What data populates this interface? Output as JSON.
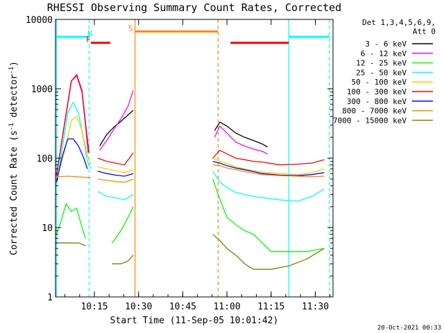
{
  "chart_data": {
    "type": "line",
    "title": "RHESSI Observing Summary Count Rates, Corrected",
    "xlabel": "Start Time (11-Sep-05 10:01:42)",
    "ylabel": "Corrected Count Rate (s",
    "ylabel_sup1": "-1",
    "ylabel_mid": " detector",
    "ylabel_sup2": "-1",
    "ylabel_end": ")",
    "footer": "20-Oct-2021 00:33",
    "xlim": [
      10.03,
      11.6
    ],
    "ylim": [
      1,
      10000
    ],
    "y_scale": "log",
    "x_ticks": [
      {
        "v": 10.25,
        "label": "10:15"
      },
      {
        "v": 10.5,
        "label": "10:30"
      },
      {
        "v": 10.75,
        "label": "10:45"
      },
      {
        "v": 11.0,
        "label": "11:00"
      },
      {
        "v": 11.25,
        "label": "11:15"
      },
      {
        "v": 11.5,
        "label": "11:30"
      }
    ],
    "y_ticks": [
      {
        "v": 1,
        "label": "1"
      },
      {
        "v": 10,
        "label": "10"
      },
      {
        "v": 100,
        "label": "100"
      },
      {
        "v": 1000,
        "label": "1000"
      },
      {
        "v": 10000,
        "label": "10000"
      }
    ],
    "legend_title": [
      "Det 1,3,4,5,6,9,",
      "Att 0"
    ],
    "series": [
      {
        "name": "3 - 6 keV",
        "color": "#000000",
        "segments": [
          [
            [
              10.035,
              55
            ],
            [
              10.08,
              300
            ],
            [
              10.12,
              1300
            ],
            [
              10.15,
              1550
            ],
            [
              10.18,
              900
            ],
            [
              10.2,
              300
            ],
            [
              10.215,
              120
            ]
          ],
          [
            [
              10.28,
              150
            ],
            [
              10.32,
              220
            ],
            [
              10.36,
              280
            ],
            [
              10.4,
              340
            ],
            [
              10.44,
              420
            ],
            [
              10.47,
              490
            ]
          ],
          [
            [
              10.93,
              250
            ],
            [
              10.96,
              330
            ],
            [
              11.0,
              290
            ],
            [
              11.05,
              230
            ],
            [
              11.1,
              200
            ],
            [
              11.15,
              180
            ],
            [
              11.2,
              160
            ],
            [
              11.23,
              145
            ]
          ]
        ]
      },
      {
        "name": "6 - 12 keV",
        "color": "#ff00ff",
        "segments": [
          [
            [
              10.035,
              55
            ],
            [
              10.08,
              300
            ],
            [
              10.12,
              1300
            ],
            [
              10.15,
              1550
            ],
            [
              10.18,
              900
            ],
            [
              10.2,
              300
            ],
            [
              10.215,
              120
            ]
          ],
          [
            [
              10.28,
              130
            ],
            [
              10.32,
              180
            ],
            [
              10.36,
              260
            ],
            [
              10.4,
              370
            ],
            [
              10.44,
              560
            ],
            [
              10.47,
              950
            ]
          ],
          [
            [
              10.93,
              200
            ],
            [
              10.96,
              290
            ],
            [
              11.0,
              230
            ],
            [
              11.05,
              170
            ],
            [
              11.1,
              150
            ],
            [
              11.15,
              135
            ],
            [
              11.2,
              125
            ],
            [
              11.23,
              115
            ]
          ]
        ]
      },
      {
        "name": "12 - 25 keV",
        "color": "#00ff00",
        "segments": [
          [
            [
              10.035,
              8
            ],
            [
              10.06,
              12
            ],
            [
              10.09,
              22
            ],
            [
              10.12,
              17
            ],
            [
              10.15,
              19
            ],
            [
              10.18,
              10
            ],
            [
              10.2,
              7
            ]
          ],
          [
            [
              10.35,
              6
            ],
            [
              10.4,
              9
            ],
            [
              10.44,
              14
            ],
            [
              10.47,
              20
            ]
          ],
          [
            [
              10.92,
              50
            ],
            [
              10.95,
              30
            ],
            [
              11.0,
              14
            ],
            [
              11.05,
              11
            ],
            [
              11.1,
              9
            ],
            [
              11.15,
              8
            ],
            [
              11.2,
              6
            ],
            [
              11.25,
              4.5
            ],
            [
              11.35,
              4.5
            ],
            [
              11.45,
              4.5
            ],
            [
              11.55,
              5
            ]
          ]
        ]
      },
      {
        "name": "25 - 50 keV",
        "color": "#00ffff",
        "segments": [
          [
            [
              10.035,
              40
            ],
            [
              10.07,
              150
            ],
            [
              10.1,
              450
            ],
            [
              10.13,
              640
            ],
            [
              10.16,
              450
            ],
            [
              10.19,
              180
            ],
            [
              10.21,
              90
            ],
            [
              10.23,
              70
            ]
          ],
          [
            [
              10.27,
              33
            ],
            [
              10.32,
              28
            ],
            [
              10.37,
              27
            ],
            [
              10.42,
              25
            ],
            [
              10.47,
              30
            ]
          ],
          [
            [
              10.92,
              65
            ],
            [
              10.96,
              45
            ],
            [
              11.0,
              38
            ],
            [
              11.05,
              32
            ],
            [
              11.1,
              30
            ],
            [
              11.15,
              28
            ],
            [
              11.2,
              27
            ],
            [
              11.3,
              25
            ],
            [
              11.4,
              24
            ],
            [
              11.48,
              28
            ],
            [
              11.55,
              36
            ]
          ]
        ]
      },
      {
        "name": "50 - 100 keV",
        "color": "#ffcc00",
        "segments": [
          [
            [
              10.035,
              50
            ],
            [
              10.08,
              120
            ],
            [
              10.12,
              350
            ],
            [
              10.15,
              400
            ],
            [
              10.18,
              250
            ],
            [
              10.21,
              110
            ],
            [
              10.23,
              80
            ]
          ],
          [
            [
              10.27,
              75
            ],
            [
              10.32,
              70
            ],
            [
              10.37,
              66
            ],
            [
              10.42,
              62
            ],
            [
              10.47,
              68
            ]
          ],
          [
            [
              10.92,
              100
            ],
            [
              10.96,
              90
            ],
            [
              11.0,
              85
            ],
            [
              11.05,
              75
            ],
            [
              11.1,
              70
            ],
            [
              11.15,
              66
            ],
            [
              11.2,
              63
            ],
            [
              11.3,
              60
            ],
            [
              11.4,
              58
            ],
            [
              11.48,
              62
            ],
            [
              11.55,
              70
            ]
          ]
        ]
      },
      {
        "name": "100 - 300 keV",
        "color": "#ff0000",
        "segments": [
          [
            [
              10.035,
              55
            ],
            [
              10.08,
              300
            ],
            [
              10.12,
              1300
            ],
            [
              10.15,
              1600
            ],
            [
              10.18,
              950
            ],
            [
              10.2,
              320
            ],
            [
              10.22,
              120
            ]
          ],
          [
            [
              10.27,
              100
            ],
            [
              10.32,
              90
            ],
            [
              10.37,
              85
            ],
            [
              10.42,
              80
            ],
            [
              10.47,
              120
            ]
          ],
          [
            [
              10.92,
              100
            ],
            [
              10.96,
              130
            ],
            [
              11.0,
              115
            ],
            [
              11.05,
              100
            ],
            [
              11.1,
              95
            ],
            [
              11.15,
              90
            ],
            [
              11.2,
              88
            ],
            [
              11.3,
              80
            ],
            [
              11.4,
              82
            ],
            [
              11.48,
              85
            ],
            [
              11.55,
              95
            ]
          ]
        ]
      },
      {
        "name": "300 - 800 keV",
        "color": "#0000ff",
        "segments": [
          [
            [
              10.035,
              45
            ],
            [
              10.07,
              110
            ],
            [
              10.1,
              190
            ],
            [
              10.13,
              190
            ],
            [
              10.16,
              150
            ],
            [
              10.19,
              100
            ],
            [
              10.21,
              70
            ]
          ],
          [
            [
              10.27,
              65
            ],
            [
              10.32,
              60
            ],
            [
              10.37,
              57
            ],
            [
              10.42,
              55
            ],
            [
              10.47,
              60
            ]
          ],
          [
            [
              10.92,
              90
            ],
            [
              10.96,
              85
            ],
            [
              11.0,
              78
            ],
            [
              11.05,
              72
            ],
            [
              11.1,
              68
            ],
            [
              11.15,
              64
            ],
            [
              11.2,
              60
            ],
            [
              11.3,
              57
            ],
            [
              11.4,
              56
            ],
            [
              11.48,
              58
            ],
            [
              11.55,
              62
            ]
          ]
        ]
      },
      {
        "name": "800 - 7000 keV",
        "color": "#ff8800",
        "segments": [
          [
            [
              10.035,
              54
            ],
            [
              10.1,
              55
            ],
            [
              10.15,
              54
            ],
            [
              10.2,
              53
            ],
            [
              10.23,
              52
            ]
          ],
          [
            [
              10.27,
              50
            ],
            [
              10.32,
              48
            ],
            [
              10.37,
              46
            ],
            [
              10.42,
              45
            ],
            [
              10.47,
              50
            ]
          ],
          [
            [
              10.92,
              80
            ],
            [
              10.96,
              78
            ],
            [
              11.0,
              72
            ],
            [
              11.05,
              68
            ],
            [
              11.1,
              64
            ],
            [
              11.15,
              61
            ],
            [
              11.2,
              58
            ],
            [
              11.3,
              56
            ],
            [
              11.4,
              55
            ],
            [
              11.48,
              54
            ],
            [
              11.55,
              55
            ]
          ]
        ]
      },
      {
        "name": "7000 - 15000 keV",
        "color": "#808000",
        "segments": [
          [
            [
              10.035,
              6
            ],
            [
              10.08,
              6
            ],
            [
              10.12,
              6
            ],
            [
              10.16,
              6
            ],
            [
              10.2,
              5.5
            ]
          ],
          [
            [
              10.35,
              3
            ],
            [
              10.4,
              3
            ],
            [
              10.44,
              3.3
            ],
            [
              10.47,
              4
            ]
          ],
          [
            [
              10.92,
              8
            ],
            [
              10.96,
              6.5
            ],
            [
              11.0,
              5
            ],
            [
              11.05,
              4
            ],
            [
              11.1,
              3
            ],
            [
              11.15,
              2.5
            ],
            [
              11.25,
              2.5
            ],
            [
              11.35,
              2.8
            ],
            [
              11.45,
              3.5
            ],
            [
              11.55,
              5
            ]
          ]
        ]
      }
    ],
    "flag_markers": [
      {
        "label": "N",
        "color": "#00ffff",
        "bars": [
          [
            10.035,
            10.22,
            5600
          ],
          [
            11.35,
            11.58,
            5600
          ]
        ],
        "label_at": 10.225,
        "label_y": 5600
      },
      {
        "label": "F",
        "color": "#ff0000",
        "bars": [
          [
            10.23,
            10.34,
            4600
          ],
          [
            11.02,
            11.35,
            4600
          ]
        ],
        "label_at": 10.215,
        "label_y": 4600
      },
      {
        "label": "S",
        "color": "#ff8800",
        "bars": [
          [
            10.48,
            10.95,
            6700
          ]
        ],
        "label_at": 10.455,
        "label_y": 6700
      }
    ],
    "vlines": [
      {
        "x": 10.035,
        "color": "#00ffff",
        "dash": "solid"
      },
      {
        "x": 10.22,
        "color": "#00ffff",
        "dash": "dashed"
      },
      {
        "x": 10.48,
        "color": "#ff8800",
        "dash": "solid"
      },
      {
        "x": 10.95,
        "color": "#ff8800",
        "dash": "dashed"
      },
      {
        "x": 11.35,
        "color": "#00ffff",
        "dash": "solid"
      },
      {
        "x": 11.58,
        "color": "#00ffff",
        "dash": "dashed"
      }
    ]
  }
}
